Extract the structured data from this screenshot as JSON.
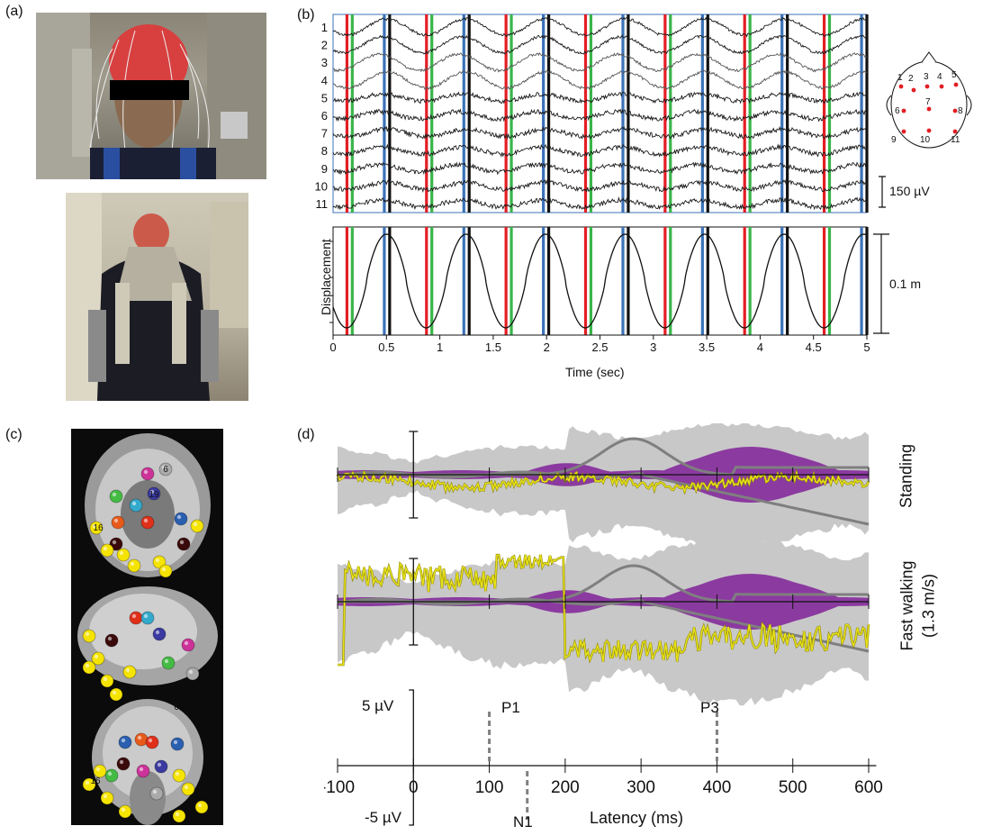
{
  "panel_a": {
    "label": "(a)"
  },
  "panel_b": {
    "label": "(b)",
    "channels": [
      "1",
      "2",
      "3",
      "4",
      "5",
      "6",
      "7",
      "8",
      "9",
      "10",
      "11"
    ],
    "eeg_scale_label": "150 µV",
    "displacement_label": "Displacement",
    "displacement_scale_label": "0.1 m",
    "xlabel": "Time (sec)",
    "xticks": [
      "0",
      "0.5",
      "1",
      "1.5",
      "2",
      "2.5",
      "3",
      "3.5",
      "4",
      "4.5",
      "5"
    ],
    "head_electrodes": [
      "1",
      "2",
      "3",
      "4",
      "5",
      "6",
      "7",
      "8",
      "9",
      "10",
      "11"
    ],
    "event_colors": {
      "red": "#e31e24",
      "green": "#3ab54a",
      "blue": "#3b73b9",
      "black": "#111111"
    }
  },
  "panel_c": {
    "label": "(c)",
    "component_labels": [
      "6",
      "19",
      "16",
      "6",
      "16"
    ]
  },
  "panel_d": {
    "label": "(d)",
    "conditions": [
      "Standing",
      "Fast walking\n(1.3 m/s)"
    ],
    "condition_line1": "Standing",
    "condition_line2a": "Fast walking",
    "condition_line2b": "(1.3 m/s)",
    "scale_top": "5 µV",
    "scale_bottom": "-5 µV",
    "peaks": [
      "P1",
      "N1",
      "P3"
    ],
    "xlabel": "Latency (ms)",
    "xticks": [
      "-100",
      "0",
      "100",
      "200",
      "300",
      "400",
      "500",
      "600"
    ],
    "colors": {
      "envelope": "#8b3aa0",
      "band": "#c8c8c8",
      "gray_line": "#7f7f7f",
      "yellow_line": "#e8e21a"
    }
  }
}
